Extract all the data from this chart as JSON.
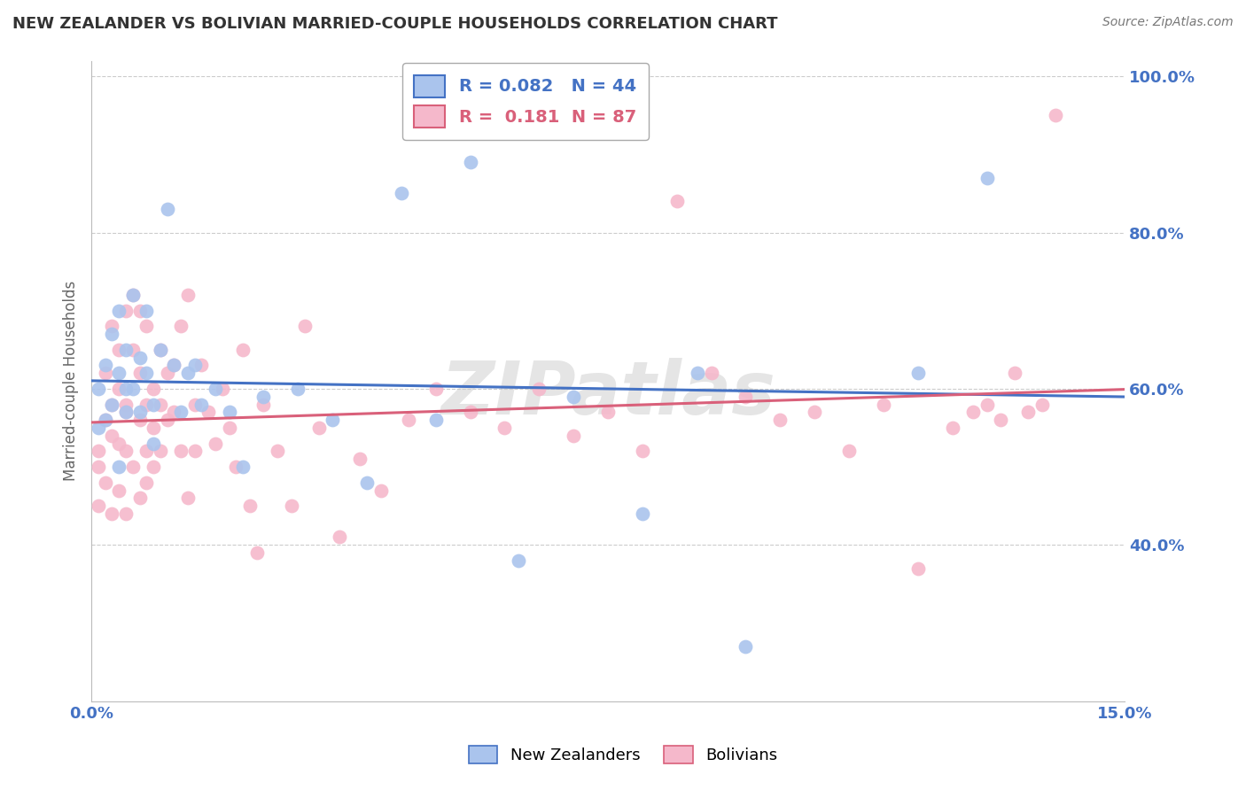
{
  "title": "NEW ZEALANDER VS BOLIVIAN MARRIED-COUPLE HOUSEHOLDS CORRELATION CHART",
  "source": "Source: ZipAtlas.com",
  "ylabel_label": "Married-couple Households",
  "legend_label1": "New Zealanders",
  "legend_label2": "Bolivians",
  "r1": "0.082",
  "n1": "44",
  "r2": "0.181",
  "n2": "87",
  "color1": "#aac4ed",
  "color2": "#f5b8cb",
  "line_color1": "#4472c4",
  "line_color2": "#d9607a",
  "xmin": 0.0,
  "xmax": 0.15,
  "ymin": 0.2,
  "ymax": 1.02,
  "x_ticks": [
    0.0,
    0.15
  ],
  "x_tick_labels": [
    "0.0%",
    "15.0%"
  ],
  "y_ticks": [
    0.4,
    0.6,
    0.8,
    1.0
  ],
  "y_tick_labels": [
    "40.0%",
    "60.0%",
    "80.0%",
    "100.0%"
  ],
  "nz_x": [
    0.001,
    0.001,
    0.002,
    0.002,
    0.003,
    0.003,
    0.004,
    0.004,
    0.004,
    0.005,
    0.005,
    0.005,
    0.006,
    0.006,
    0.007,
    0.007,
    0.008,
    0.008,
    0.009,
    0.009,
    0.01,
    0.011,
    0.012,
    0.013,
    0.014,
    0.015,
    0.016,
    0.018,
    0.02,
    0.022,
    0.025,
    0.03,
    0.035,
    0.04,
    0.045,
    0.05,
    0.055,
    0.062,
    0.07,
    0.08,
    0.088,
    0.095,
    0.12,
    0.13
  ],
  "nz_y": [
    0.55,
    0.6,
    0.56,
    0.63,
    0.58,
    0.67,
    0.7,
    0.62,
    0.5,
    0.6,
    0.65,
    0.57,
    0.72,
    0.6,
    0.64,
    0.57,
    0.7,
    0.62,
    0.58,
    0.53,
    0.65,
    0.83,
    0.63,
    0.57,
    0.62,
    0.63,
    0.58,
    0.6,
    0.57,
    0.5,
    0.59,
    0.6,
    0.56,
    0.48,
    0.85,
    0.56,
    0.89,
    0.38,
    0.59,
    0.44,
    0.62,
    0.27,
    0.62,
    0.87
  ],
  "bo_x": [
    0.001,
    0.001,
    0.001,
    0.002,
    0.002,
    0.002,
    0.003,
    0.003,
    0.003,
    0.003,
    0.004,
    0.004,
    0.004,
    0.004,
    0.005,
    0.005,
    0.005,
    0.005,
    0.005,
    0.006,
    0.006,
    0.006,
    0.007,
    0.007,
    0.007,
    0.007,
    0.008,
    0.008,
    0.008,
    0.008,
    0.009,
    0.009,
    0.009,
    0.01,
    0.01,
    0.01,
    0.011,
    0.011,
    0.012,
    0.012,
    0.013,
    0.013,
    0.014,
    0.014,
    0.015,
    0.015,
    0.016,
    0.017,
    0.018,
    0.019,
    0.02,
    0.021,
    0.022,
    0.023,
    0.024,
    0.025,
    0.027,
    0.029,
    0.031,
    0.033,
    0.036,
    0.039,
    0.042,
    0.046,
    0.05,
    0.055,
    0.06,
    0.065,
    0.07,
    0.075,
    0.08,
    0.085,
    0.09,
    0.095,
    0.1,
    0.105,
    0.11,
    0.115,
    0.12,
    0.125,
    0.128,
    0.13,
    0.132,
    0.134,
    0.136,
    0.138,
    0.14
  ],
  "bo_y": [
    0.52,
    0.45,
    0.5,
    0.56,
    0.48,
    0.62,
    0.54,
    0.44,
    0.58,
    0.68,
    0.6,
    0.53,
    0.47,
    0.65,
    0.7,
    0.58,
    0.52,
    0.44,
    0.57,
    0.72,
    0.65,
    0.5,
    0.7,
    0.62,
    0.56,
    0.46,
    0.68,
    0.58,
    0.52,
    0.48,
    0.6,
    0.55,
    0.5,
    0.65,
    0.58,
    0.52,
    0.62,
    0.56,
    0.63,
    0.57,
    0.68,
    0.52,
    0.72,
    0.46,
    0.58,
    0.52,
    0.63,
    0.57,
    0.53,
    0.6,
    0.55,
    0.5,
    0.65,
    0.45,
    0.39,
    0.58,
    0.52,
    0.45,
    0.68,
    0.55,
    0.41,
    0.51,
    0.47,
    0.56,
    0.6,
    0.57,
    0.55,
    0.6,
    0.54,
    0.57,
    0.52,
    0.84,
    0.62,
    0.59,
    0.56,
    0.57,
    0.52,
    0.58,
    0.37,
    0.55,
    0.57,
    0.58,
    0.56,
    0.62,
    0.57,
    0.58,
    0.95
  ],
  "watermark": "ZIPatlas",
  "background_color": "#ffffff",
  "grid_color": "#cccccc"
}
